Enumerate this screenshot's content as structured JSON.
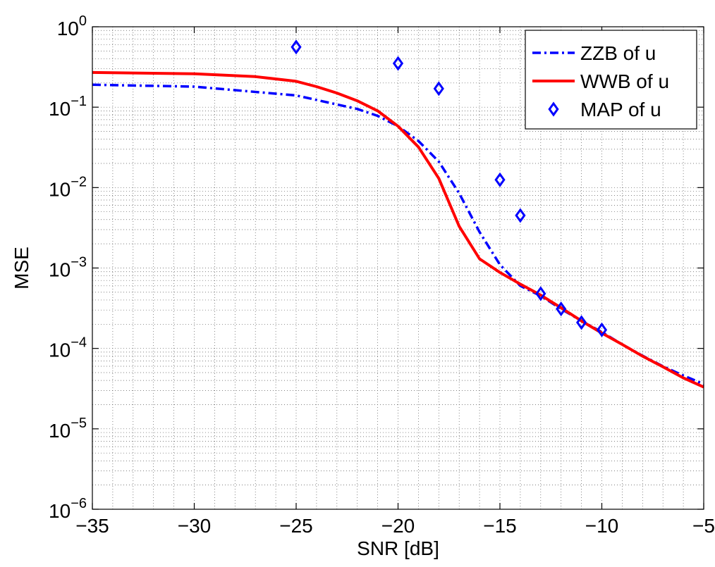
{
  "chart_data": {
    "type": "line",
    "xlabel": "SNR [dB]",
    "ylabel": "MSE",
    "xlim": [
      -35,
      -5
    ],
    "ylim": [
      1e-06,
      1
    ],
    "yscale": "log",
    "grid": "major and minor, dotted",
    "legend_position": "top-right",
    "x_ticks": [
      -35,
      -30,
      -25,
      -20,
      -15,
      -10,
      -5
    ],
    "x_tick_labels": [
      "−35",
      "−30",
      "−25",
      "−20",
      "−15",
      "−10",
      "−5"
    ],
    "y_ticks": [
      1e-06,
      1e-05,
      0.0001,
      0.001,
      0.01,
      0.1,
      1
    ],
    "y_tick_labels": [
      {
        "base": "10",
        "exp": "−6"
      },
      {
        "base": "10",
        "exp": "−5"
      },
      {
        "base": "10",
        "exp": "−4"
      },
      {
        "base": "10",
        "exp": "−3"
      },
      {
        "base": "10",
        "exp": "−2"
      },
      {
        "base": "10",
        "exp": "−1"
      },
      {
        "base": "10",
        "exp": "0"
      }
    ],
    "series": [
      {
        "name": "ZZB of u",
        "style": "dash-dot",
        "color": "#0000ff",
        "x": [
          -35,
          -30,
          -25,
          -22,
          -21,
          -20,
          -19,
          -18,
          -17,
          -16,
          -15,
          -14,
          -13,
          -12,
          -11,
          -10,
          -9,
          -8,
          -7,
          -6,
          -5
        ],
        "y": [
          0.19,
          0.18,
          0.14,
          0.095,
          0.078,
          0.058,
          0.038,
          0.021,
          0.0085,
          0.0028,
          0.0011,
          0.0006,
          0.00045,
          0.00031,
          0.00022,
          0.00016,
          0.000112,
          8.1e-05,
          6e-05,
          4.6e-05,
          3.6e-05
        ]
      },
      {
        "name": "WWB of u",
        "style": "solid",
        "color": "#ff0000",
        "x": [
          -35,
          -30,
          -27,
          -25,
          -24,
          -23,
          -22,
          -21,
          -20,
          -19,
          -18,
          -17,
          -16,
          -15,
          -14,
          -13,
          -12,
          -11,
          -10,
          -9,
          -8,
          -7,
          -6,
          -5
        ],
        "y": [
          0.27,
          0.26,
          0.24,
          0.21,
          0.18,
          0.15,
          0.12,
          0.09,
          0.058,
          0.032,
          0.013,
          0.0033,
          0.0013,
          0.00088,
          0.00063,
          0.00046,
          0.00032,
          0.00022,
          0.000155,
          0.000112,
          8e-05,
          5.9e-05,
          4.3e-05,
          3.3e-05
        ]
      },
      {
        "name": "MAP of u",
        "style": "markers-diamond",
        "color": "#0000ff",
        "x": [
          -25,
          -20,
          -18,
          -15,
          -14,
          -13,
          -12,
          -11,
          -10
        ],
        "y": [
          0.56,
          0.35,
          0.17,
          0.0125,
          0.0045,
          0.00048,
          0.00031,
          0.00021,
          0.00017
        ]
      }
    ]
  }
}
